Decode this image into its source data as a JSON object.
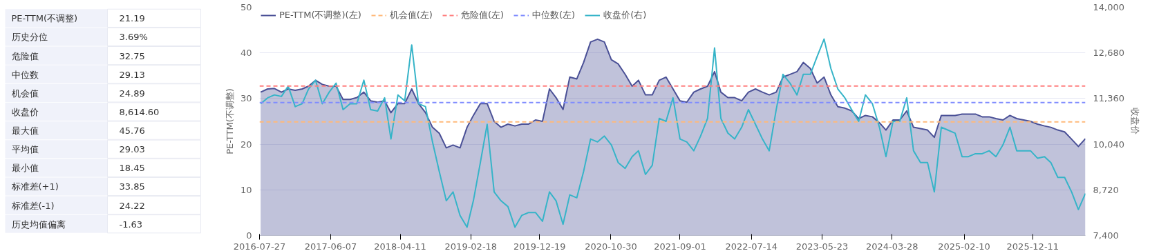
{
  "chart_data": [
    {
      "type": "other",
      "annotations": [
        "PE-TTM(不调整)",
        "21.19",
        "历史分位",
        "3.69%",
        "危险值",
        "32.75",
        "中位数",
        "29.13",
        "机会值",
        "24.89",
        "收盘价",
        "8,614.60",
        "最大值",
        "45.76",
        "平均值",
        "29.03",
        "最小值",
        "18.45",
        "标准差(+1)",
        "33.85",
        "标准差(-1)",
        "24.22",
        "历史均值偏离",
        "-1.63"
      ]
    },
    {
      "type": "area",
      "ylabel": "PE-TTM(不调整)",
      "y2label": "收盘价",
      "x": [
        "2016-08",
        "2016-09",
        "2016-10",
        "2016-11",
        "2016-12",
        "2017-01",
        "2017-02",
        "2017-03",
        "2017-04",
        "2017-05",
        "2017-06",
        "2017-07",
        "2017-08",
        "2017-09",
        "2017-10",
        "2017-11",
        "2017-12",
        "2018-01",
        "2018-02",
        "2018-03",
        "2018-04",
        "2018-05",
        "2018-06",
        "2018-07",
        "2018-08",
        "2018-09",
        "2018-10",
        "2018-11",
        "2018-12",
        "2019-01",
        "2019-02",
        "2019-03",
        "2019-04",
        "2019-05",
        "2019-06",
        "2019-07",
        "2019-08",
        "2019-09",
        "2019-10",
        "2019-11",
        "2019-12",
        "2020-01",
        "2020-02",
        "2020-03",
        "2020-04",
        "2020-05",
        "2020-06",
        "2020-07",
        "2020-08",
        "2020-09",
        "2020-10",
        "2020-11",
        "2020-12",
        "2021-01",
        "2021-02",
        "2021-03",
        "2021-04",
        "2021-05",
        "2021-06",
        "2021-07",
        "2021-08",
        "2021-09",
        "2021-10",
        "2021-11",
        "2021-12",
        "2022-01",
        "2022-02",
        "2022-03",
        "2022-04",
        "2022-05",
        "2022-06",
        "2022-07",
        "2022-08",
        "2022-09",
        "2022-10",
        "2022-11",
        "2022-12",
        "2023-01",
        "2023-02",
        "2023-03",
        "2023-04",
        "2023-05",
        "2023-06",
        "2023-07",
        "2023-08",
        "2023-09",
        "2023-10",
        "2023-11",
        "2023-12",
        "2024-01",
        "2024-02",
        "2024-03",
        "2024-04",
        "2024-05",
        "2024-06",
        "2024-07",
        "2024-08",
        "2024-09",
        "2024-10",
        "2024-11",
        "2024-12",
        "2025-01",
        "2025-02",
        "2025-03",
        "2025-04",
        "2025-05",
        "2025-06",
        "2025-07",
        "2025-08",
        "2025-09",
        "2025-10",
        "2025-11",
        "2025-12",
        "2026-01",
        "2026-02",
        "2026-03",
        "2026-04",
        "2026-05",
        "2026-06",
        "2026-07",
        "2026-08"
      ],
      "series": [
        {
          "name": "PE-TTM(不调整)(左)",
          "type": "area",
          "color": "#4a5096",
          "values": [
            31.4,
            32.1,
            32.2,
            31.4,
            32.1,
            31.8,
            32.1,
            32.7,
            34.0,
            33.1,
            32.7,
            32.7,
            29.8,
            29.8,
            30.2,
            31.4,
            29.5,
            29.2,
            29.5,
            26.9,
            28.9,
            28.9,
            32.1,
            28.9,
            26.9,
            23.7,
            22.4,
            19.2,
            19.8,
            19.2,
            23.7,
            26.3,
            28.9,
            28.9,
            25.0,
            23.7,
            24.4,
            24.0,
            24.4,
            24.4,
            25.3,
            25.0,
            32.1,
            30.2,
            27.6,
            34.7,
            34.3,
            37.9,
            42.4,
            43.0,
            42.4,
            38.5,
            37.6,
            35.3,
            32.7,
            34.0,
            30.8,
            30.8,
            34.0,
            34.7,
            32.1,
            29.5,
            29.2,
            31.4,
            32.1,
            32.7,
            35.9,
            31.4,
            30.2,
            30.2,
            29.5,
            31.4,
            32.1,
            31.4,
            30.8,
            31.4,
            34.7,
            35.3,
            35.9,
            37.9,
            36.6,
            33.4,
            34.7,
            30.8,
            28.2,
            27.9,
            27.3,
            25.6,
            26.3,
            26.0,
            24.7,
            23.1,
            25.3,
            25.3,
            27.3,
            23.7,
            23.4,
            23.1,
            21.5,
            26.3,
            26.3,
            26.3,
            26.6,
            26.6,
            26.6,
            26.0,
            26.0,
            25.6,
            25.3,
            26.3,
            25.6,
            25.3,
            25.0,
            24.4,
            24.0,
            23.7,
            23.1,
            22.7,
            21.1,
            19.5,
            21.2
          ]
        },
        {
          "name": "收盘价(右)",
          "type": "line",
          "axis": "y2",
          "color": "#36b4c8",
          "values": [
            11210,
            11380,
            11465,
            11420,
            11720,
            11125,
            11210,
            11635,
            11890,
            11210,
            11550,
            11805,
            11040,
            11210,
            11210,
            11890,
            11040,
            11000,
            11380,
            10190,
            11465,
            11295,
            12910,
            11210,
            11125,
            10105,
            9250,
            8405,
            8660,
            7980,
            7640,
            8405,
            9510,
            10615,
            8660,
            8405,
            8235,
            7640,
            7980,
            8065,
            8065,
            7810,
            8660,
            8405,
            7725,
            8575,
            8490,
            9250,
            10190,
            10105,
            10275,
            10020,
            9510,
            9340,
            9680,
            9850,
            9165,
            9425,
            10785,
            10700,
            11380,
            10190,
            10105,
            9850,
            10275,
            10785,
            12825,
            10785,
            10360,
            10190,
            10530,
            11040,
            10615,
            10190,
            9850,
            11040,
            12060,
            11805,
            11465,
            12060,
            12060,
            12570,
            13080,
            12230,
            11635,
            11380,
            11040,
            10700,
            11465,
            11210,
            10530,
            9680,
            10700,
            10700,
            11380,
            9850,
            9510,
            9510,
            8660,
            10530,
            10445,
            10360,
            9680,
            9680,
            9765,
            9765,
            9850,
            9680,
            10020,
            10530,
            9850,
            9850,
            9850,
            9635,
            9680,
            9510,
            9080,
            9080,
            8660,
            8150,
            8615
          ]
        }
      ],
      "ref_lines": [
        {
          "axis": "y",
          "value": 24.89,
          "label": "机会值(左)",
          "color": "#ffb97a",
          "line_style": "dashed"
        },
        {
          "axis": "y",
          "value": 32.75,
          "label": "危险值(左)",
          "color": "#ff7f7f",
          "line_style": "dashed"
        },
        {
          "axis": "y",
          "value": 29.13,
          "label": "中位数(左)",
          "color": "#7f8cff",
          "line_style": "dashed"
        }
      ],
      "xlim": [
        "2016-07-27",
        "2026-08-01"
      ],
      "xticks": [
        "2016-07-27",
        "2017-06-07",
        "2018-04-11",
        "2019-02-18",
        "2019-12-19",
        "2020-10-30",
        "2021-09-01",
        "2022-07-14",
        "2023-05-23",
        "2024-03-28",
        "2025-02-10",
        "2025-12-11"
      ],
      "ylim": [
        0,
        50
      ],
      "yticks": [
        0,
        10,
        20,
        30,
        40,
        50
      ],
      "y2lim": [
        7400,
        14000
      ],
      "y2ticks": [
        {
          "value": 7400,
          "label": "7,400"
        },
        {
          "value": 8720,
          "label": "8,720"
        },
        {
          "value": 10040,
          "label": "10,040"
        },
        {
          "value": 11360,
          "label": "11,360"
        },
        {
          "value": 12680,
          "label": "12,680"
        },
        {
          "value": 14000,
          "label": "14,000"
        }
      ],
      "grid": "y",
      "legend": "top left",
      "line_style": "solid"
    }
  ]
}
